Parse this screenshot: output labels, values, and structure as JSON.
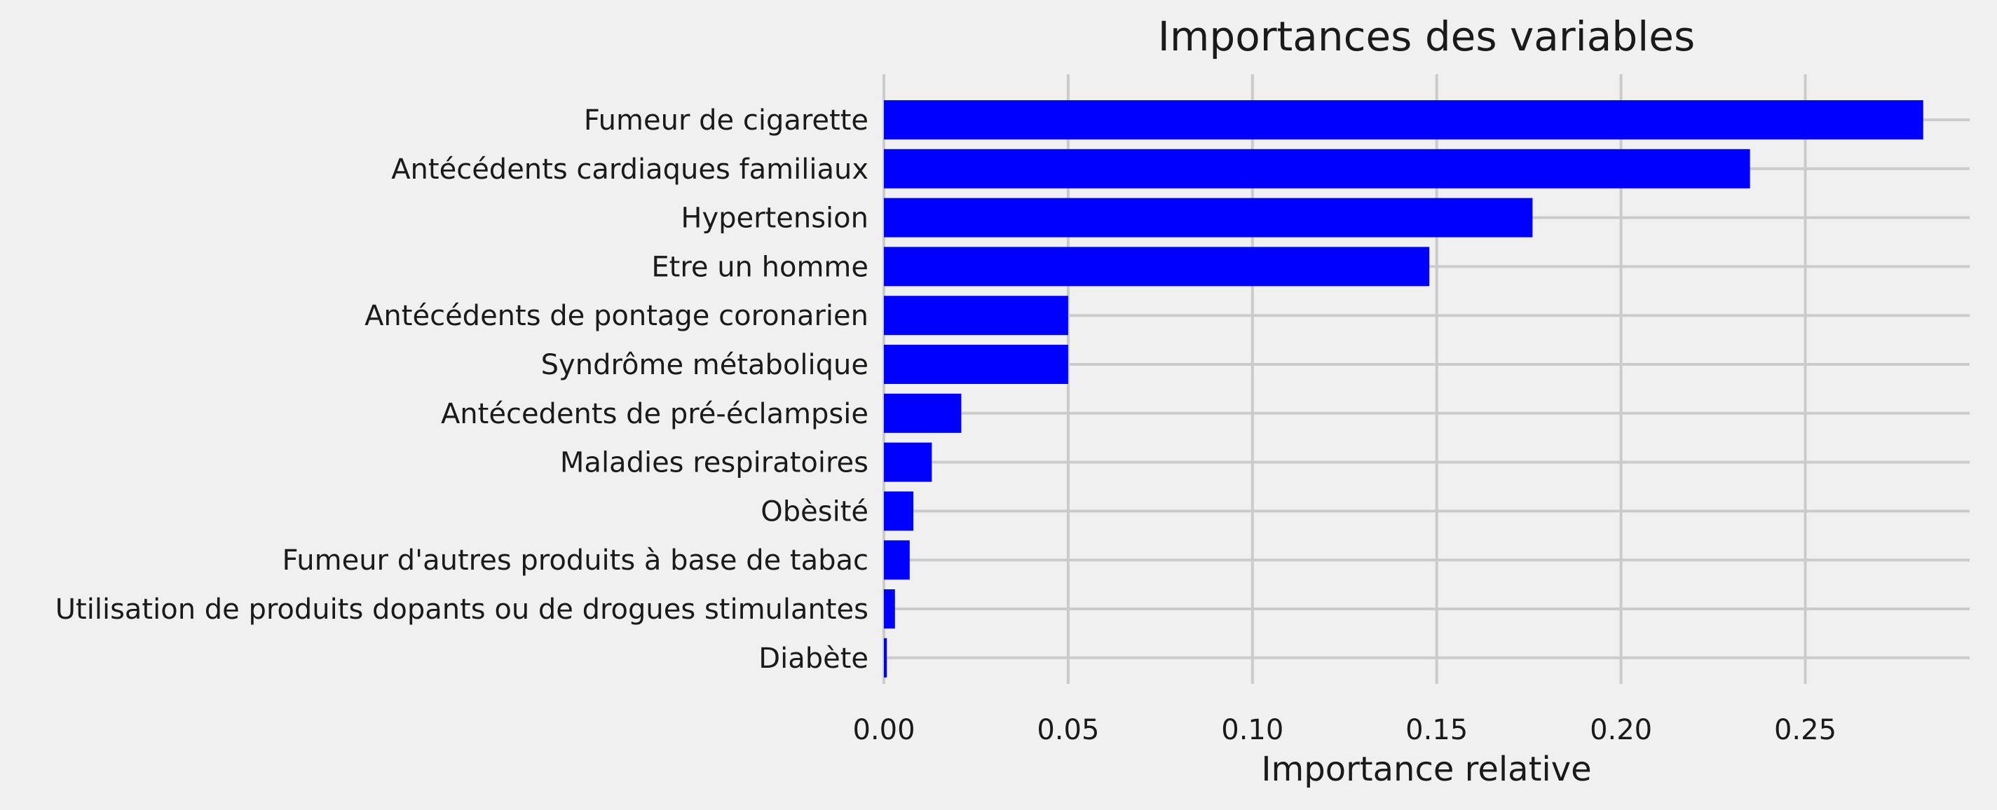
{
  "chart_data": {
    "type": "bar",
    "orientation": "horizontal",
    "title": "Importances des variables",
    "xlabel": "Importance relative",
    "ylabel": "",
    "xlim": [
      0,
      0.2946
    ],
    "xticks": [
      0.0,
      0.05,
      0.1,
      0.15,
      0.2,
      0.25
    ],
    "xtick_labels": [
      "0.00",
      "0.05",
      "0.10",
      "0.15",
      "0.20",
      "0.25"
    ],
    "grid": true,
    "bar_color": "#0000ff",
    "background": "#f0f0f0",
    "categories": [
      "Fumeur de cigarette",
      "Antécédents cardiaques familiaux",
      "Hypertension",
      "Etre un homme",
      "Antécédents de pontage coronarien",
      "Syndrôme métabolique",
      "Antécedents de pré-éclampsie",
      "Maladies respiratoires",
      "Obèsité",
      "Fumeur d'autres produits à base de tabac",
      "Utilisation de produits dopants ou de drogues stimulantes",
      "Diabète"
    ],
    "values": [
      0.282,
      0.235,
      0.176,
      0.148,
      0.05,
      0.05,
      0.021,
      0.013,
      0.008,
      0.007,
      0.003,
      0.0008
    ]
  }
}
